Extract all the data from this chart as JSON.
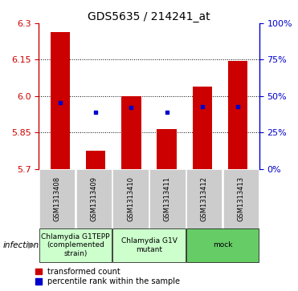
{
  "title": "GDS5635 / 214241_at",
  "samples": [
    "GSM1313408",
    "GSM1313409",
    "GSM1313410",
    "GSM1313411",
    "GSM1313412",
    "GSM1313413"
  ],
  "bar_bottoms": [
    5.7,
    5.7,
    5.7,
    5.7,
    5.7,
    5.7
  ],
  "bar_tops": [
    6.265,
    5.775,
    6.0,
    5.865,
    6.04,
    6.145
  ],
  "blue_dots": [
    5.972,
    5.932,
    5.952,
    5.932,
    5.955,
    5.955
  ],
  "ylim": [
    5.7,
    6.3
  ],
  "yticks_left": [
    5.7,
    5.85,
    6.0,
    6.15,
    6.3
  ],
  "yticks_right": [
    0,
    25,
    50,
    75,
    100
  ],
  "bar_color": "#cc0000",
  "dot_color": "#0000cc",
  "groups": [
    {
      "label": "Chlamydia G1TEPP\n(complemented\nstrain)",
      "indices": [
        0,
        1
      ],
      "color": "#ccffcc"
    },
    {
      "label": "Chlamydia G1V\nmutant",
      "indices": [
        2,
        3
      ],
      "color": "#ccffcc"
    },
    {
      "label": "mock",
      "indices": [
        4,
        5
      ],
      "color": "#66cc66"
    }
  ],
  "infection_label": "infection",
  "legend_red": "transformed count",
  "legend_blue": "percentile rank within the sample",
  "background_color": "#ffffff"
}
